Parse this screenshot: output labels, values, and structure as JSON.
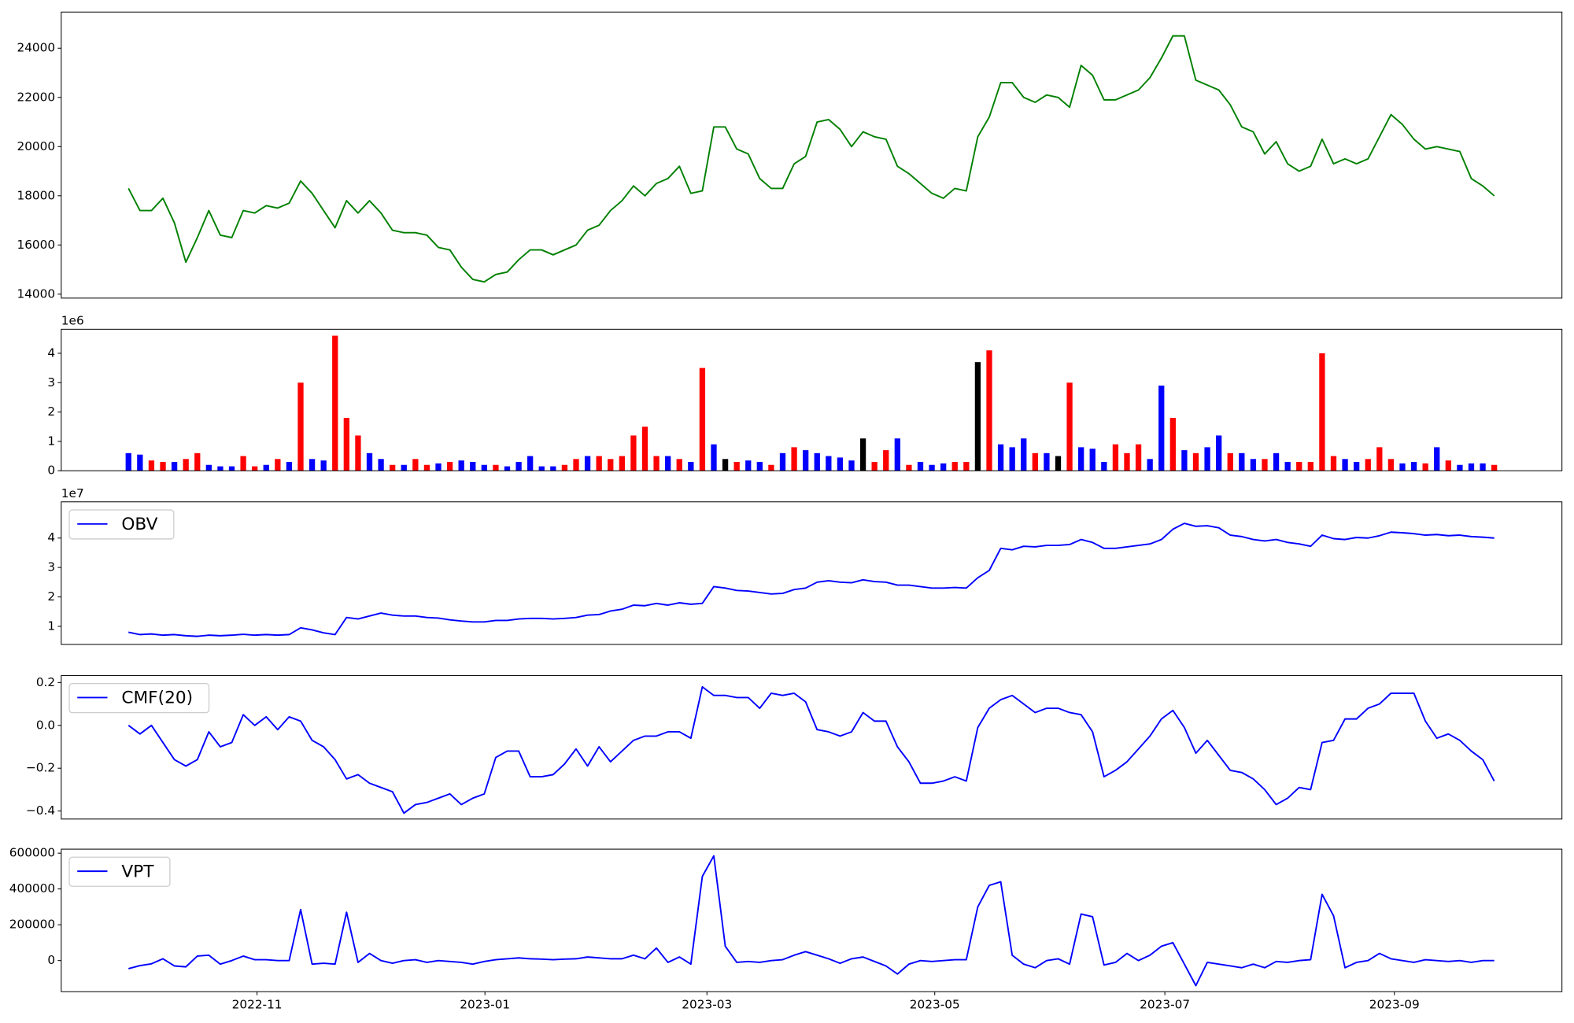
{
  "chart_data": [
    {
      "type": "line",
      "xlim": [
        -5.86,
        124.9
      ],
      "ylim": [
        13840,
        25470
      ],
      "yticks": [
        14000,
        16000,
        18000,
        20000,
        22000,
        24000
      ],
      "series": [
        {
          "color": "green",
          "values": [
            18300,
            17400,
            17400,
            17900,
            16900,
            15300,
            16300,
            17400,
            16400,
            16300,
            17400,
            17300,
            17600,
            17500,
            17700,
            18600,
            18100,
            17400,
            16700,
            17800,
            17300,
            17800,
            17300,
            16600,
            16500,
            16500,
            16400,
            15900,
            15800,
            15100,
            14600,
            14500,
            14800,
            14900,
            15400,
            15800,
            15800,
            15600,
            15800,
            16000,
            16600,
            16800,
            17400,
            17800,
            18400,
            18000,
            18500,
            18700,
            19200,
            18100,
            18200,
            20800,
            20800,
            19900,
            19700,
            18700,
            18300,
            18300,
            19300,
            19600,
            21000,
            21100,
            20700,
            20000,
            20600,
            20400,
            20300,
            19200,
            18900,
            18500,
            18100,
            17900,
            18300,
            18200,
            20400,
            21200,
            22600,
            22600,
            22000,
            21800,
            22100,
            22000,
            21600,
            23300,
            22900,
            21900,
            21900,
            22100,
            22300,
            22800,
            23600,
            24500,
            24500,
            22700,
            22500,
            22300,
            21700,
            20800,
            20600,
            19700,
            20200,
            19300,
            19000,
            19200,
            20300,
            19300,
            19500,
            19300,
            19500,
            20400,
            21300,
            20900,
            20300,
            19900,
            20000,
            19900,
            19800,
            18700,
            18400,
            18000
          ]
        }
      ]
    },
    {
      "type": "bar",
      "xlim": [
        -5.86,
        124.9
      ],
      "ylim": [
        0,
        4820000
      ],
      "offset_label": "1e6",
      "yticks": [
        0,
        {
          "value": 1000000,
          "label": "1"
        },
        {
          "value": 2000000,
          "label": "2"
        },
        {
          "value": 3000000,
          "label": "3"
        },
        {
          "value": 4000000,
          "label": "4"
        }
      ],
      "series": [
        {
          "values": [
            600000,
            550000,
            350000,
            300000,
            300000,
            400000,
            600000,
            200000,
            150000,
            150000,
            500000,
            150000,
            200000,
            400000,
            300000,
            3000000,
            400000,
            350000,
            4600000,
            1800000,
            1200000,
            600000,
            400000,
            200000,
            200000,
            400000,
            200000,
            250000,
            300000,
            350000,
            300000,
            200000,
            200000,
            150000,
            300000,
            500000,
            150000,
            150000,
            200000,
            400000,
            500000,
            500000,
            400000,
            500000,
            1200000,
            1500000,
            500000,
            500000,
            400000,
            300000,
            3500000,
            900000,
            400000,
            300000,
            350000,
            300000,
            200000,
            600000,
            800000,
            700000,
            600000,
            500000,
            450000,
            350000,
            1100000,
            300000,
            700000,
            1100000,
            200000,
            300000,
            200000,
            250000,
            300000,
            300000,
            3700000,
            4100000,
            900000,
            800000,
            1100000,
            600000,
            600000,
            500000,
            3000000,
            800000,
            750000,
            300000,
            900000,
            600000,
            900000,
            400000,
            2900000,
            1800000,
            700000,
            600000,
            800000,
            1200000,
            600000,
            600000,
            400000,
            400000,
            600000,
            300000,
            300000,
            300000,
            4000000,
            500000,
            400000,
            300000,
            400000,
            800000,
            400000,
            250000,
            300000,
            250000,
            800000,
            350000,
            200000,
            250000,
            250000,
            200000
          ],
          "colors": [
            "blue",
            "blue",
            "red",
            "red",
            "blue",
            "red",
            "red",
            "blue",
            "blue",
            "blue",
            "red",
            "red",
            "blue",
            "red",
            "blue",
            "red",
            "blue",
            "blue",
            "red",
            "red",
            "red",
            "blue",
            "blue",
            "red",
            "blue",
            "red",
            "red",
            "blue",
            "red",
            "blue",
            "blue",
            "blue",
            "red",
            "blue",
            "blue",
            "blue",
            "blue",
            "blue",
            "red",
            "red",
            "blue",
            "red",
            "red",
            "red",
            "red",
            "red",
            "red",
            "blue",
            "red",
            "blue",
            "red",
            "blue",
            "black",
            "red",
            "blue",
            "blue",
            "red",
            "blue",
            "red",
            "blue",
            "blue",
            "blue",
            "blue",
            "blue",
            "black",
            "red",
            "red",
            "blue",
            "red",
            "blue",
            "blue",
            "blue",
            "red",
            "red",
            "black",
            "red",
            "blue",
            "blue",
            "blue",
            "red",
            "blue",
            "black",
            "red",
            "blue",
            "blue",
            "blue",
            "red",
            "red",
            "red",
            "blue",
            "blue",
            "red",
            "blue",
            "red",
            "blue",
            "blue",
            "red",
            "blue",
            "blue",
            "red",
            "blue",
            "blue",
            "red",
            "red",
            "red",
            "red",
            "blue",
            "blue",
            "red",
            "red",
            "red",
            "blue",
            "blue",
            "red",
            "blue",
            "red",
            "blue",
            "blue",
            "blue",
            "red"
          ]
        }
      ]
    },
    {
      "type": "line",
      "xlim": [
        -5.86,
        124.9
      ],
      "ylim": [
        3860000,
        52300000
      ],
      "offset_label": "1e7",
      "legend": "upper left",
      "yticks": [
        {
          "value": 10000000,
          "label": "1"
        },
        {
          "value": 20000000,
          "label": "2"
        },
        {
          "value": 30000000,
          "label": "3"
        },
        {
          "value": 40000000,
          "label": "4"
        }
      ],
      "series": [
        {
          "name": "OBV",
          "color": "blue",
          "values": [
            8000000,
            7200000,
            7400000,
            7000000,
            7200000,
            6800000,
            6600000,
            7000000,
            6800000,
            7000000,
            7300000,
            7000000,
            7200000,
            7000000,
            7200000,
            9500000,
            8800000,
            7800000,
            7200000,
            13000000,
            12500000,
            13500000,
            14500000,
            13800000,
            13500000,
            13500000,
            13000000,
            12800000,
            12200000,
            11800000,
            11500000,
            11500000,
            12000000,
            12000000,
            12500000,
            12700000,
            12700000,
            12500000,
            12700000,
            13000000,
            13800000,
            14000000,
            15200000,
            15800000,
            17200000,
            17000000,
            17800000,
            17200000,
            18000000,
            17500000,
            17800000,
            23500000,
            23000000,
            22200000,
            22000000,
            21500000,
            21000000,
            21200000,
            22500000,
            23000000,
            25000000,
            25500000,
            25000000,
            24800000,
            25800000,
            25200000,
            25000000,
            24000000,
            24000000,
            23500000,
            23000000,
            23000000,
            23200000,
            23000000,
            26500000,
            29000000,
            36500000,
            36000000,
            37200000,
            37000000,
            37500000,
            37500000,
            37800000,
            39500000,
            38500000,
            36500000,
            36500000,
            37000000,
            37500000,
            38000000,
            39500000,
            43000000,
            45000000,
            44000000,
            44200000,
            43500000,
            41000000,
            40500000,
            39500000,
            39000000,
            39500000,
            38500000,
            38000000,
            37200000,
            41000000,
            39800000,
            39500000,
            40200000,
            40000000,
            40800000,
            42000000,
            41800000,
            41500000,
            41000000,
            41200000,
            40800000,
            41000000,
            40500000,
            40300000,
            40000000
          ]
        }
      ]
    },
    {
      "type": "line",
      "xlim": [
        -5.86,
        124.9
      ],
      "ylim": [
        -0.4375,
        0.233
      ],
      "legend": "upper left",
      "yticks": [
        0.2,
        {
          "value": 0,
          "label": "0.0"
        },
        {
          "value": -0.2,
          "label": "−0.2"
        },
        {
          "value": -0.4,
          "label": "−0.4"
        }
      ],
      "series": [
        {
          "name": "CMF(20)",
          "color": "blue",
          "values": [
            0,
            -0.04,
            0,
            -0.08,
            -0.16,
            -0.19,
            -0.16,
            -0.03,
            -0.1,
            -0.08,
            0.05,
            0,
            0.04,
            -0.02,
            0.04,
            0.02,
            -0.07,
            -0.1,
            -0.16,
            -0.25,
            -0.23,
            -0.27,
            -0.29,
            -0.31,
            -0.41,
            -0.37,
            -0.36,
            -0.34,
            -0.32,
            -0.37,
            -0.34,
            -0.32,
            -0.15,
            -0.12,
            -0.12,
            -0.24,
            -0.24,
            -0.23,
            -0.18,
            -0.11,
            -0.19,
            -0.1,
            -0.17,
            -0.12,
            -0.07,
            -0.05,
            -0.05,
            -0.03,
            -0.03,
            -0.06,
            0.18,
            0.14,
            0.14,
            0.13,
            0.13,
            0.08,
            0.15,
            0.14,
            0.15,
            0.11,
            -0.02,
            -0.03,
            -0.05,
            -0.03,
            0.06,
            0.02,
            0.02,
            -0.1,
            -0.17,
            -0.27,
            -0.27,
            -0.26,
            -0.24,
            -0.26,
            -0.01,
            0.08,
            0.12,
            0.14,
            0.1,
            0.06,
            0.08,
            0.08,
            0.06,
            0.05,
            -0.03,
            -0.24,
            -0.21,
            -0.17,
            -0.11,
            -0.05,
            0.03,
            0.07,
            -0.01,
            -0.13,
            -0.07,
            -0.14,
            -0.21,
            -0.22,
            -0.25,
            -0.3,
            -0.37,
            -0.34,
            -0.29,
            -0.3,
            -0.08,
            -0.07,
            0.03,
            0.03,
            0.08,
            0.1,
            0.15,
            0.15,
            0.15,
            0.02,
            -0.06,
            -0.04,
            -0.07,
            -0.12,
            -0.16,
            -0.26
          ]
        }
      ]
    },
    {
      "type": "line",
      "xlim": [
        -5.86,
        124.9
      ],
      "ylim": [
        -173800,
        622400
      ],
      "legend": "upper left",
      "yticks": [
        0,
        200000,
        400000,
        600000
      ],
      "xticks": [
        {
          "value": 11.2,
          "label": "2022-11"
        },
        {
          "value": 31.06,
          "label": "2023-01"
        },
        {
          "value": 50.4,
          "label": "2023-03"
        },
        {
          "value": 70.25,
          "label": "2023-05"
        },
        {
          "value": 90.3,
          "label": "2023-07"
        },
        {
          "value": 110.3,
          "label": "2023-09"
        }
      ],
      "series": [
        {
          "name": "VPT",
          "color": "blue",
          "values": [
            -45000,
            -28000,
            -18000,
            10000,
            -30000,
            -35000,
            25000,
            30000,
            -20000,
            0,
            25000,
            5000,
            5000,
            0,
            0,
            285000,
            -20000,
            -15000,
            -20000,
            270000,
            -10000,
            40000,
            0,
            -15000,
            0,
            5000,
            -10000,
            0,
            -5000,
            -10000,
            -20000,
            -5000,
            5000,
            10000,
            15000,
            10000,
            8000,
            5000,
            8000,
            10000,
            20000,
            15000,
            10000,
            10000,
            30000,
            10000,
            70000,
            -10000,
            20000,
            -20000,
            470000,
            585000,
            80000,
            -10000,
            -5000,
            -10000,
            0,
            5000,
            30000,
            50000,
            30000,
            10000,
            -15000,
            10000,
            20000,
            -5000,
            -30000,
            -75000,
            -20000,
            0,
            -5000,
            0,
            5000,
            5000,
            300000,
            420000,
            440000,
            30000,
            -20000,
            -40000,
            0,
            10000,
            -20000,
            260000,
            245000,
            -25000,
            -10000,
            40000,
            0,
            30000,
            80000,
            100000,
            -20000,
            -140000,
            -10000,
            -20000,
            -30000,
            -40000,
            -20000,
            -40000,
            -5000,
            -10000,
            0,
            5000,
            370000,
            250000,
            -40000,
            -10000,
            0,
            40000,
            10000,
            0,
            -10000,
            5000,
            0,
            -5000,
            0,
            -10000,
            0,
            0
          ]
        }
      ]
    }
  ]
}
